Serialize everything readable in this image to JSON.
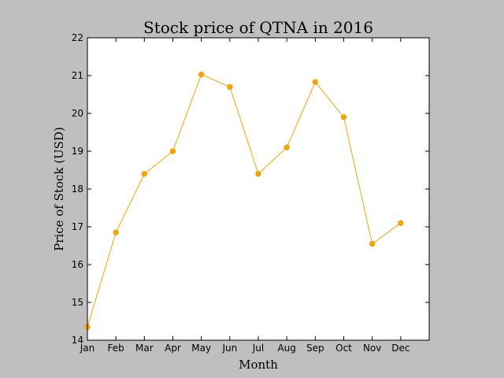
{
  "chart_data": {
    "type": "line",
    "title": "Stock price of QTNA in 2016",
    "xlabel": "Month",
    "ylabel": "Price of Stock (USD)",
    "categories": [
      "Jan",
      "Feb",
      "Mar",
      "Apr",
      "May",
      "Jun",
      "Jul",
      "Aug",
      "Sep",
      "Oct",
      "Nov",
      "Dec"
    ],
    "series": [
      {
        "values": [
          14.35,
          16.85,
          18.4,
          19.0,
          21.03,
          20.7,
          18.4,
          19.1,
          20.83,
          19.9,
          16.55,
          17.1
        ],
        "color": "#f5a300"
      }
    ],
    "xlim": [
      0,
      12
    ],
    "ylim": [
      14,
      22
    ],
    "yticks": [
      14,
      15,
      16,
      17,
      18,
      19,
      20,
      21,
      22
    ],
    "grid": false,
    "legend": "none",
    "background": "#bfbfbf",
    "plot_background": "#ffffff"
  }
}
